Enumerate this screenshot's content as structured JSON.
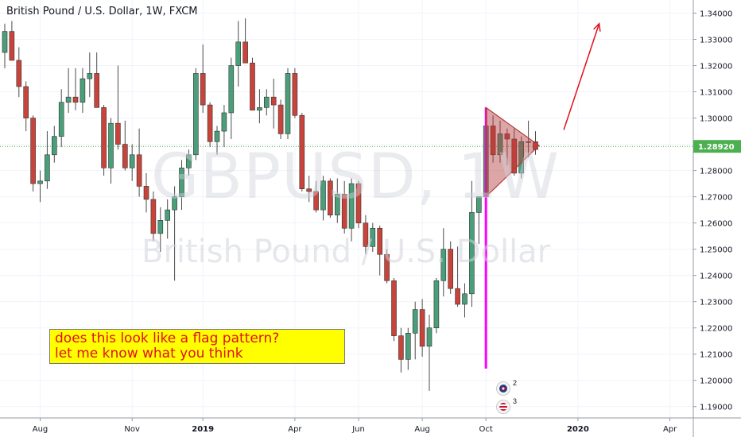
{
  "title": "British Pound / U.S. Dollar, 1W, FXCM",
  "watermark": {
    "symbol": "GBPUSD, 1W",
    "description": "British Pound / U.S. Dollar"
  },
  "note": {
    "line1": "does this look like a flag pattern?",
    "line2": "let me know what you think"
  },
  "events": [
    {
      "label": "2",
      "icon": "uk-flag-icon"
    },
    {
      "label": "3",
      "icon": "us-flag-icon"
    }
  ],
  "colors": {
    "up": "#4a9e79",
    "down": "#c8443b",
    "pennant": "#b43a3a",
    "pole": "#ff00ff",
    "arrow": "#e0101c",
    "last_price_bg": "#4caf50"
  },
  "chart_data": {
    "type": "candlestick",
    "symbol": "GBPUSD",
    "timeframe": "1W",
    "ylim": [
      1.1875,
      1.345
    ],
    "y_ticks": [
      "1.34000",
      "1.33000",
      "1.32000",
      "1.31000",
      "1.30000",
      "1.29000",
      "1.28000",
      "1.27000",
      "1.26000",
      "1.25000",
      "1.24000",
      "1.23000",
      "1.22000",
      "1.21000",
      "1.20000",
      "1.19000"
    ],
    "last_price": "1.28920",
    "x_labels": [
      {
        "label": "Aug",
        "i": 5
      },
      {
        "label": "Nov",
        "i": 18
      },
      {
        "label": "2019",
        "i": 28,
        "bold": true
      },
      {
        "label": "Apr",
        "i": 41
      },
      {
        "label": "Jun",
        "i": 50
      },
      {
        "label": "Aug",
        "i": 59
      },
      {
        "label": "Oct",
        "i": 68
      },
      {
        "label": "2020",
        "i": 81,
        "bold": true
      },
      {
        "label": "Apr",
        "i": 94
      }
    ],
    "candles": [
      [
        1.325,
        1.336,
        1.319,
        1.333
      ],
      [
        1.333,
        1.337,
        1.322,
        1.322
      ],
      [
        1.322,
        1.327,
        1.308,
        1.312
      ],
      [
        1.312,
        1.314,
        1.295,
        1.3
      ],
      [
        1.3,
        1.301,
        1.272,
        1.275
      ],
      [
        1.275,
        1.28,
        1.268,
        1.276
      ],
      [
        1.276,
        1.295,
        1.273,
        1.286
      ],
      [
        1.286,
        1.297,
        1.283,
        1.293
      ],
      [
        1.293,
        1.311,
        1.289,
        1.306
      ],
      [
        1.306,
        1.319,
        1.302,
        1.308
      ],
      [
        1.308,
        1.319,
        1.303,
        1.306
      ],
      [
        1.306,
        1.319,
        1.302,
        1.315
      ],
      [
        1.315,
        1.325,
        1.308,
        1.317
      ],
      [
        1.317,
        1.325,
        1.304,
        1.304
      ],
      [
        1.304,
        1.305,
        1.278,
        1.281
      ],
      [
        1.281,
        1.3,
        1.275,
        1.298
      ],
      [
        1.298,
        1.32,
        1.288,
        1.29
      ],
      [
        1.29,
        1.299,
        1.28,
        1.281
      ],
      [
        1.281,
        1.29,
        1.276,
        1.286
      ],
      [
        1.286,
        1.296,
        1.27,
        1.274
      ],
      [
        1.274,
        1.279,
        1.264,
        1.269
      ],
      [
        1.269,
        1.272,
        1.253,
        1.256
      ],
      [
        1.256,
        1.266,
        1.249,
        1.261
      ],
      [
        1.261,
        1.269,
        1.254,
        1.265
      ],
      [
        1.265,
        1.274,
        1.238,
        1.27
      ],
      [
        1.27,
        1.284,
        1.265,
        1.281
      ],
      [
        1.281,
        1.288,
        1.278,
        1.286
      ],
      [
        1.286,
        1.319,
        1.284,
        1.317
      ],
      [
        1.317,
        1.328,
        1.302,
        1.305
      ],
      [
        1.305,
        1.306,
        1.289,
        1.291
      ],
      [
        1.291,
        1.297,
        1.286,
        1.295
      ],
      [
        1.295,
        1.305,
        1.289,
        1.302
      ],
      [
        1.302,
        1.323,
        1.292,
        1.32
      ],
      [
        1.32,
        1.337,
        1.312,
        1.329
      ],
      [
        1.329,
        1.338,
        1.322,
        1.321
      ],
      [
        1.321,
        1.323,
        1.303,
        1.303
      ],
      [
        1.303,
        1.311,
        1.298,
        1.304
      ],
      [
        1.304,
        1.311,
        1.301,
        1.308
      ],
      [
        1.308,
        1.315,
        1.296,
        1.305
      ],
      [
        1.305,
        1.307,
        1.292,
        1.294
      ],
      [
        1.294,
        1.319,
        1.292,
        1.317
      ],
      [
        1.317,
        1.319,
        1.3,
        1.301
      ],
      [
        1.301,
        1.302,
        1.272,
        1.273
      ],
      [
        1.273,
        1.278,
        1.268,
        1.272
      ],
      [
        1.272,
        1.276,
        1.264,
        1.265
      ],
      [
        1.265,
        1.278,
        1.261,
        1.276
      ],
      [
        1.276,
        1.277,
        1.262,
        1.263
      ],
      [
        1.263,
        1.277,
        1.26,
        1.271
      ],
      [
        1.271,
        1.276,
        1.256,
        1.258
      ],
      [
        1.258,
        1.277,
        1.253,
        1.275
      ],
      [
        1.275,
        1.276,
        1.258,
        1.26
      ],
      [
        1.26,
        1.263,
        1.248,
        1.251
      ],
      [
        1.251,
        1.26,
        1.249,
        1.258
      ],
      [
        1.258,
        1.259,
        1.24,
        1.248
      ],
      [
        1.248,
        1.25,
        1.237,
        1.238
      ],
      [
        1.238,
        1.239,
        1.215,
        1.217
      ],
      [
        1.217,
        1.22,
        1.203,
        1.208
      ],
      [
        1.208,
        1.22,
        1.204,
        1.218
      ],
      [
        1.218,
        1.23,
        1.208,
        1.227
      ],
      [
        1.227,
        1.231,
        1.209,
        1.213
      ],
      [
        1.213,
        1.225,
        1.196,
        1.22
      ],
      [
        1.22,
        1.239,
        1.218,
        1.238
      ],
      [
        1.238,
        1.258,
        1.232,
        1.25
      ],
      [
        1.25,
        1.253,
        1.233,
        1.235
      ],
      [
        1.235,
        1.251,
        1.228,
        1.229
      ],
      [
        1.229,
        1.237,
        1.224,
        1.233
      ],
      [
        1.233,
        1.276,
        1.228,
        1.264
      ],
      [
        1.264,
        1.27,
        1.252,
        1.27
      ],
      [
        1.27,
        1.298,
        1.264,
        1.297
      ],
      [
        1.297,
        1.301,
        1.283,
        1.286
      ],
      [
        1.286,
        1.299,
        1.283,
        1.294
      ],
      [
        1.294,
        1.296,
        1.282,
        1.292
      ],
      [
        1.292,
        1.296,
        1.278,
        1.279
      ],
      [
        1.279,
        1.293,
        1.277,
        1.291
      ],
      [
        1.291,
        1.299,
        1.285,
        1.291
      ],
      [
        1.291,
        1.295,
        1.286,
        1.288
      ]
    ],
    "annotations": {
      "pole": {
        "i": 68,
        "top": 1.304,
        "bottom": 1.2045
      },
      "pennant": [
        {
          "i": 68,
          "y": 1.304
        },
        {
          "i": 75.5,
          "y": 1.2895
        },
        {
          "i": 68,
          "y": 1.27
        }
      ],
      "arrow": {
        "from": {
          "i": 79,
          "y": 1.2955
        },
        "to": {
          "i": 84,
          "y": 1.336
        }
      }
    }
  }
}
